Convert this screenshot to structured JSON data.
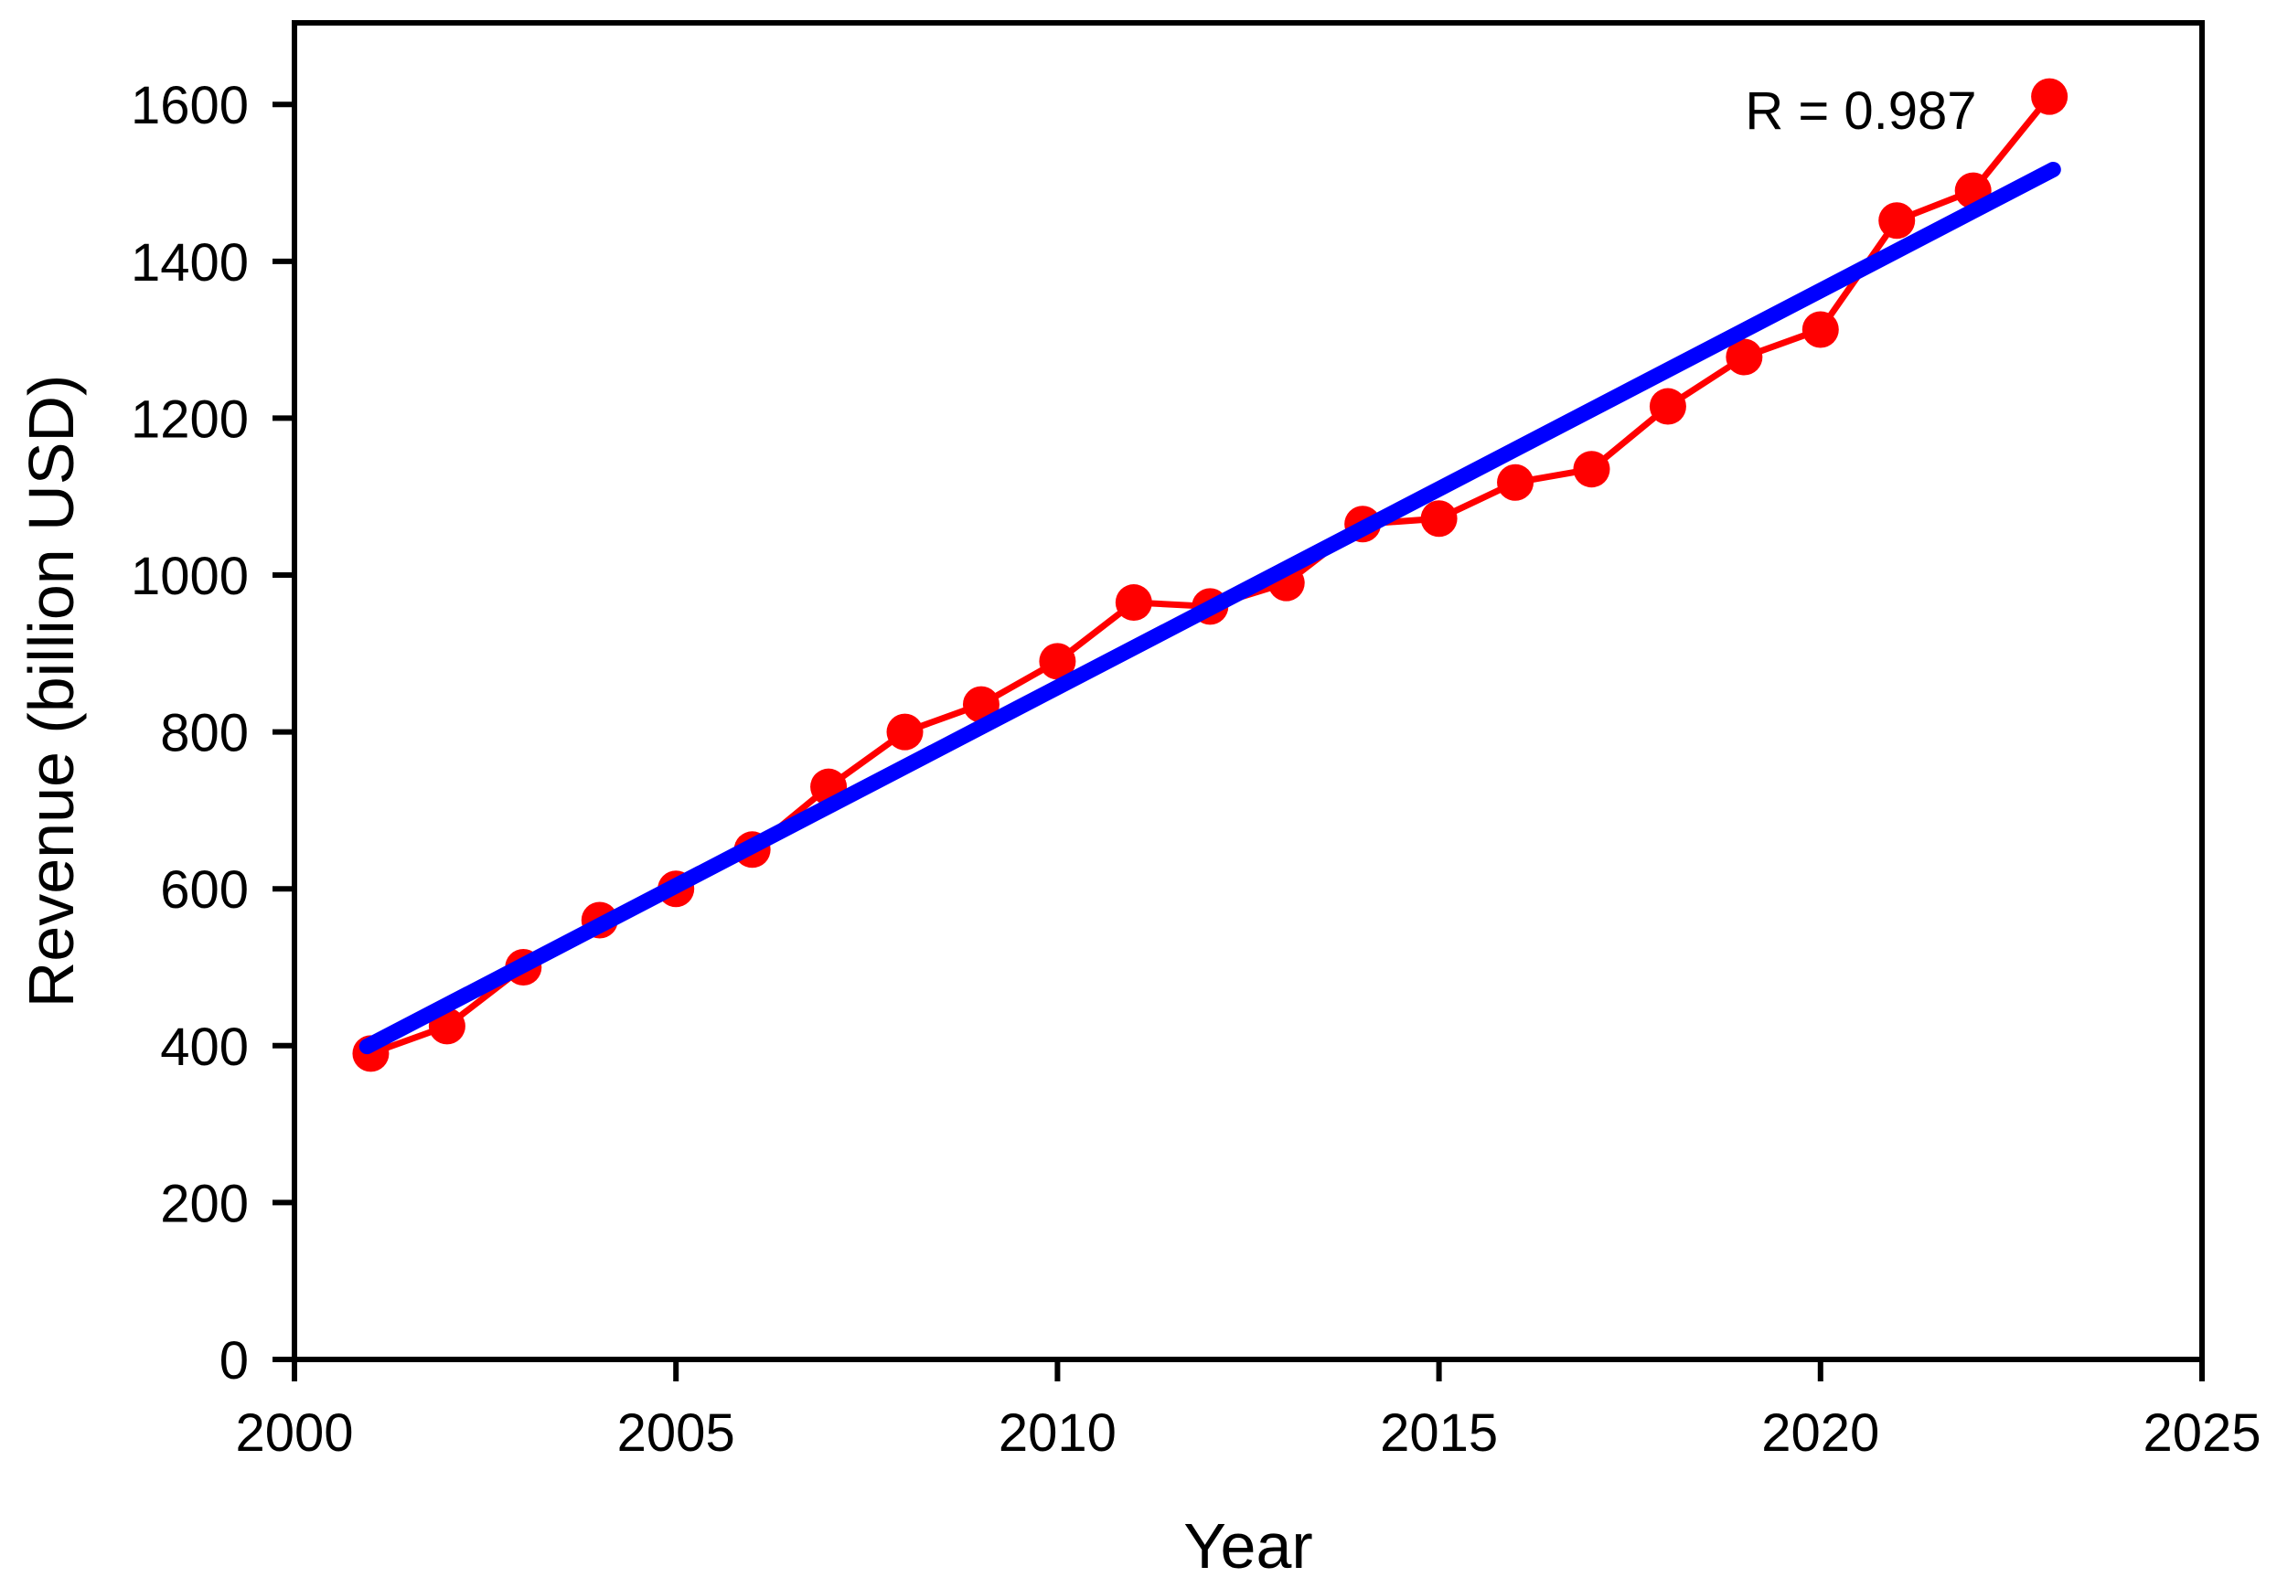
{
  "chart_data": {
    "type": "scatter",
    "title": "",
    "xlabel": "Year",
    "ylabel": "Revenue (billion USD)",
    "annotation": "R = 0.987",
    "x": [
      2001,
      2002,
      2003,
      2004,
      2005,
      2006,
      2007,
      2008,
      2009,
      2010,
      2011,
      2012,
      2013,
      2014,
      2015,
      2016,
      2017,
      2018,
      2019,
      2020,
      2021,
      2022,
      2023
    ],
    "series": [
      {
        "name": "Revenue",
        "values": [
          390,
          425,
          500,
          560,
          600,
          650,
          730,
          800,
          835,
          890,
          965,
          960,
          990,
          1065,
          1072,
          1118,
          1135,
          1215,
          1278,
          1313,
          1452,
          1490,
          1610
        ]
      }
    ],
    "trendline": {
      "x1": 2000.95,
      "y1": 399,
      "x2": 2023.05,
      "y2": 1517
    },
    "xlim": [
      2000,
      2025
    ],
    "ylim": [
      0,
      1704
    ],
    "xticks": [
      2000,
      2005,
      2010,
      2015,
      2020,
      2025
    ],
    "yticks": [
      0,
      200,
      400,
      600,
      800,
      1000,
      1200,
      1400,
      1600
    ],
    "grid": false,
    "legend": "none",
    "marker_radius": 20,
    "colors": {
      "series": "#ff0000",
      "trend": "#0000ff",
      "axis": "#000000",
      "background": "#ffffff",
      "text": "#000000"
    }
  }
}
